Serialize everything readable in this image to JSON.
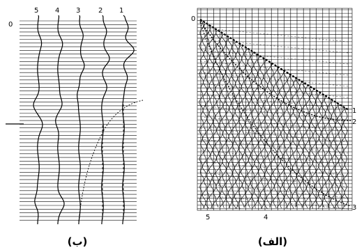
{
  "panels": [
    {
      "caption": "(ب)",
      "depth_label": "0",
      "traces": [
        "5",
        "4",
        "3",
        "2",
        "1"
      ]
    },
    {
      "caption": "(الف)",
      "depth_label": "0",
      "right_labels": [
        "1",
        "2",
        "3"
      ],
      "bottom_labels": [
        "5",
        "4"
      ]
    }
  ],
  "colors": {
    "ink": "#000000",
    "background": "#ffffff"
  }
}
